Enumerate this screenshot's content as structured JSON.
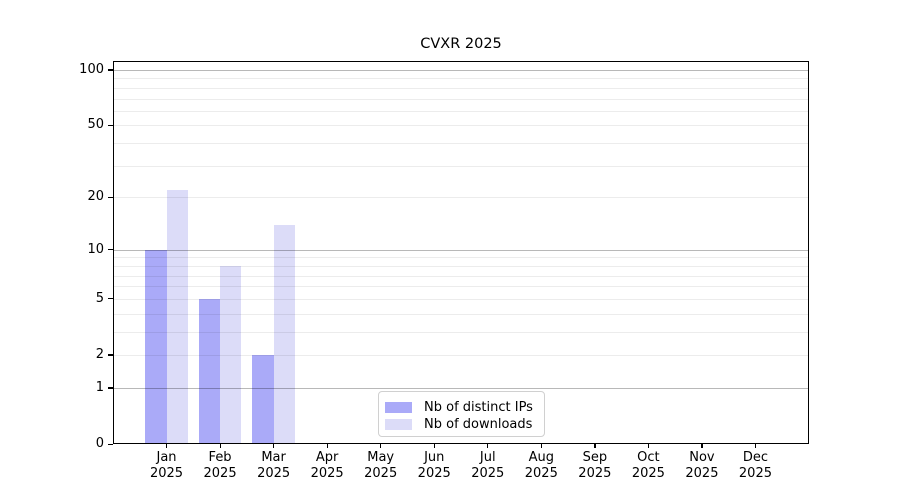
{
  "chart_data": {
    "type": "bar",
    "title": "CVXR 2025",
    "categories": [
      "Jan",
      "Feb",
      "Mar",
      "Apr",
      "May",
      "Jun",
      "Jul",
      "Aug",
      "Sep",
      "Oct",
      "Nov",
      "Dec"
    ],
    "category_year": "2025",
    "series": [
      {
        "name": "Nb of distinct IPs",
        "color": "#aaaaf8",
        "values": [
          10,
          5,
          2,
          0,
          0,
          0,
          0,
          0,
          0,
          0,
          0,
          0
        ]
      },
      {
        "name": "Nb of downloads",
        "color": "#dcdcf8",
        "values": [
          22,
          8,
          14,
          0,
          0,
          0,
          0,
          0,
          0,
          0,
          0,
          0
        ]
      }
    ],
    "xlabel": "",
    "ylabel": "",
    "yscale": "log1p",
    "ylim": [
      0,
      112
    ],
    "yticks": [
      0,
      1,
      2,
      5,
      10,
      20,
      50,
      100
    ],
    "major_gridlines": [
      1,
      10,
      100
    ],
    "minor_gridlines": [
      2,
      3,
      4,
      5,
      6,
      7,
      8,
      9,
      20,
      30,
      40,
      50,
      60,
      70,
      80,
      90
    ],
    "grid": true,
    "legend_position": "lower center"
  }
}
